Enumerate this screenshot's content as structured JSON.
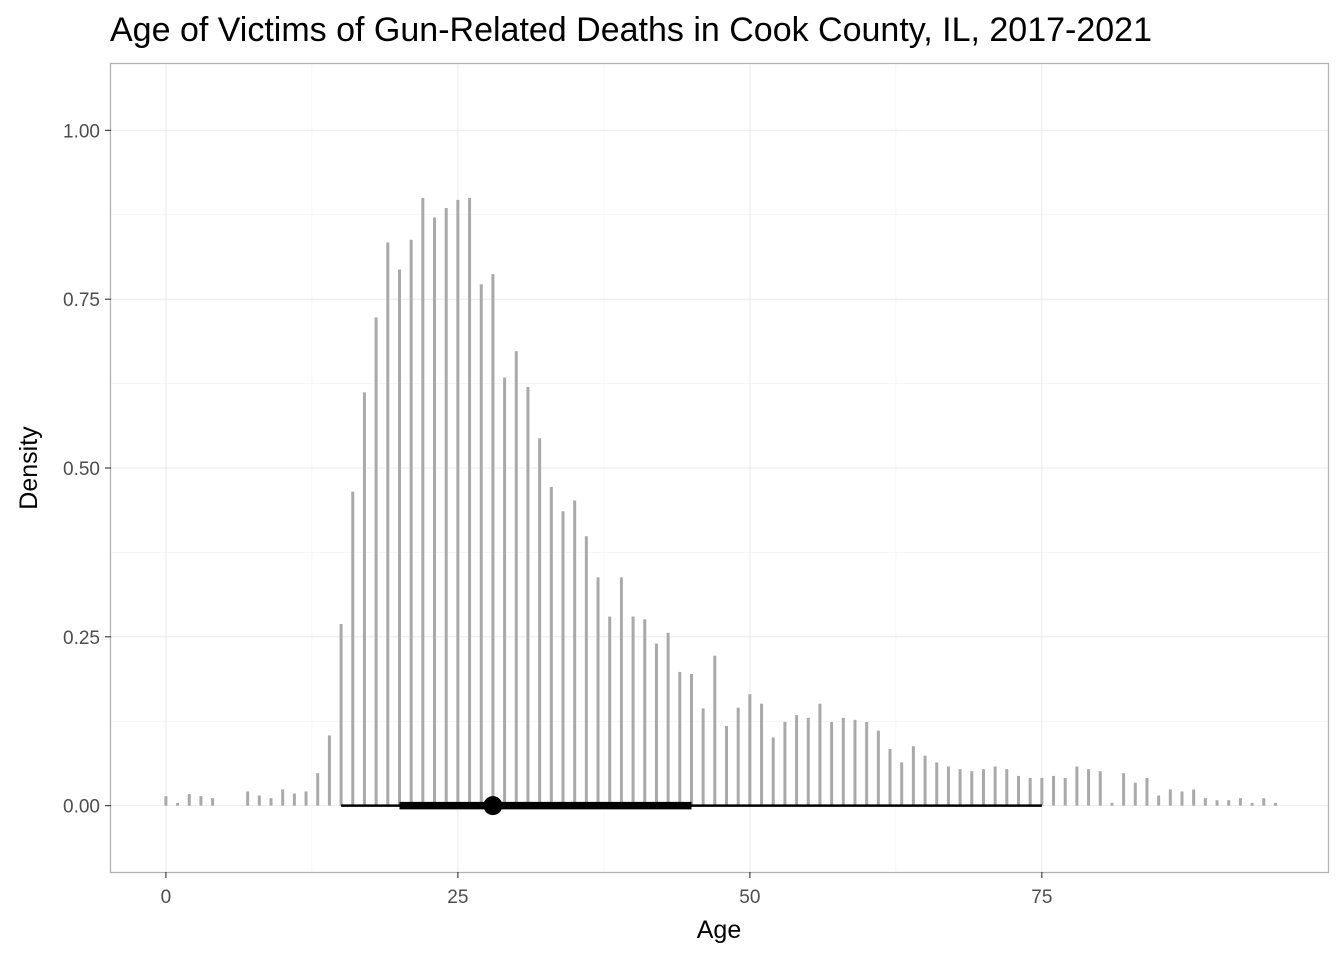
{
  "chart_data": {
    "type": "bar",
    "title": "Age of Victims of Gun-Related Deaths in Cook County, IL, 2017-2021",
    "xlabel": "Age",
    "ylabel": "Density",
    "xlim": [
      -4.7,
      99.5
    ],
    "ylim": [
      -0.0983,
      1.0983
    ],
    "x_ticks": [
      0,
      25,
      50,
      75
    ],
    "x_tick_labels": [
      "0",
      "25",
      "50",
      "75"
    ],
    "y_ticks": [
      0,
      0.25,
      0.5,
      0.75,
      1.0
    ],
    "y_tick_labels": [
      "0.00",
      "0.25",
      "0.50",
      "0.75",
      "1.00"
    ],
    "grid": true,
    "bars": {
      "x": [
        0,
        1,
        2,
        3,
        4,
        7,
        8,
        9,
        10,
        11,
        12,
        13,
        14,
        15,
        16,
        17,
        18,
        19,
        20,
        21,
        22,
        23,
        24,
        25,
        26,
        27,
        28,
        29,
        30,
        31,
        32,
        33,
        34,
        35,
        36,
        37,
        38,
        39,
        40,
        41,
        42,
        43,
        44,
        45,
        46,
        47,
        48,
        49,
        50,
        51,
        52,
        53,
        54,
        55,
        56,
        57,
        58,
        59,
        60,
        61,
        62,
        63,
        64,
        65,
        66,
        67,
        68,
        69,
        70,
        71,
        72,
        73,
        74,
        75,
        76,
        77,
        78,
        79,
        80,
        81,
        82,
        83,
        84,
        85,
        86,
        87,
        88,
        89,
        90,
        91,
        92,
        93,
        94,
        95
      ],
      "values": [
        0.014,
        0.004,
        0.017,
        0.014,
        0.011,
        0.021,
        0.015,
        0.011,
        0.024,
        0.018,
        0.021,
        0.048,
        0.104,
        0.269,
        0.465,
        0.612,
        0.723,
        0.834,
        0.794,
        0.838,
        0.9,
        0.871,
        0.885,
        0.897,
        0.9,
        0.772,
        0.787,
        0.634,
        0.673,
        0.62,
        0.544,
        0.472,
        0.436,
        0.452,
        0.399,
        0.338,
        0.28,
        0.338,
        0.28,
        0.276,
        0.24,
        0.256,
        0.198,
        0.195,
        0.144,
        0.222,
        0.118,
        0.145,
        0.165,
        0.151,
        0.101,
        0.124,
        0.134,
        0.13,
        0.151,
        0.124,
        0.13,
        0.127,
        0.124,
        0.111,
        0.084,
        0.064,
        0.088,
        0.074,
        0.064,
        0.058,
        0.054,
        0.051,
        0.054,
        0.058,
        0.054,
        0.044,
        0.041,
        0.041,
        0.044,
        0.041,
        0.058,
        0.054,
        0.051,
        0.004,
        0.048,
        0.034,
        0.041,
        0.015,
        0.024,
        0.021,
        0.024,
        0.011,
        0.008,
        0.008,
        0.011,
        0.004,
        0.011,
        0.004
      ],
      "color": "#a9a9a9"
    },
    "interval": {
      "point": 28,
      "inner": [
        20,
        45
      ],
      "outer": [
        15,
        75
      ],
      "color": "#000000"
    }
  }
}
